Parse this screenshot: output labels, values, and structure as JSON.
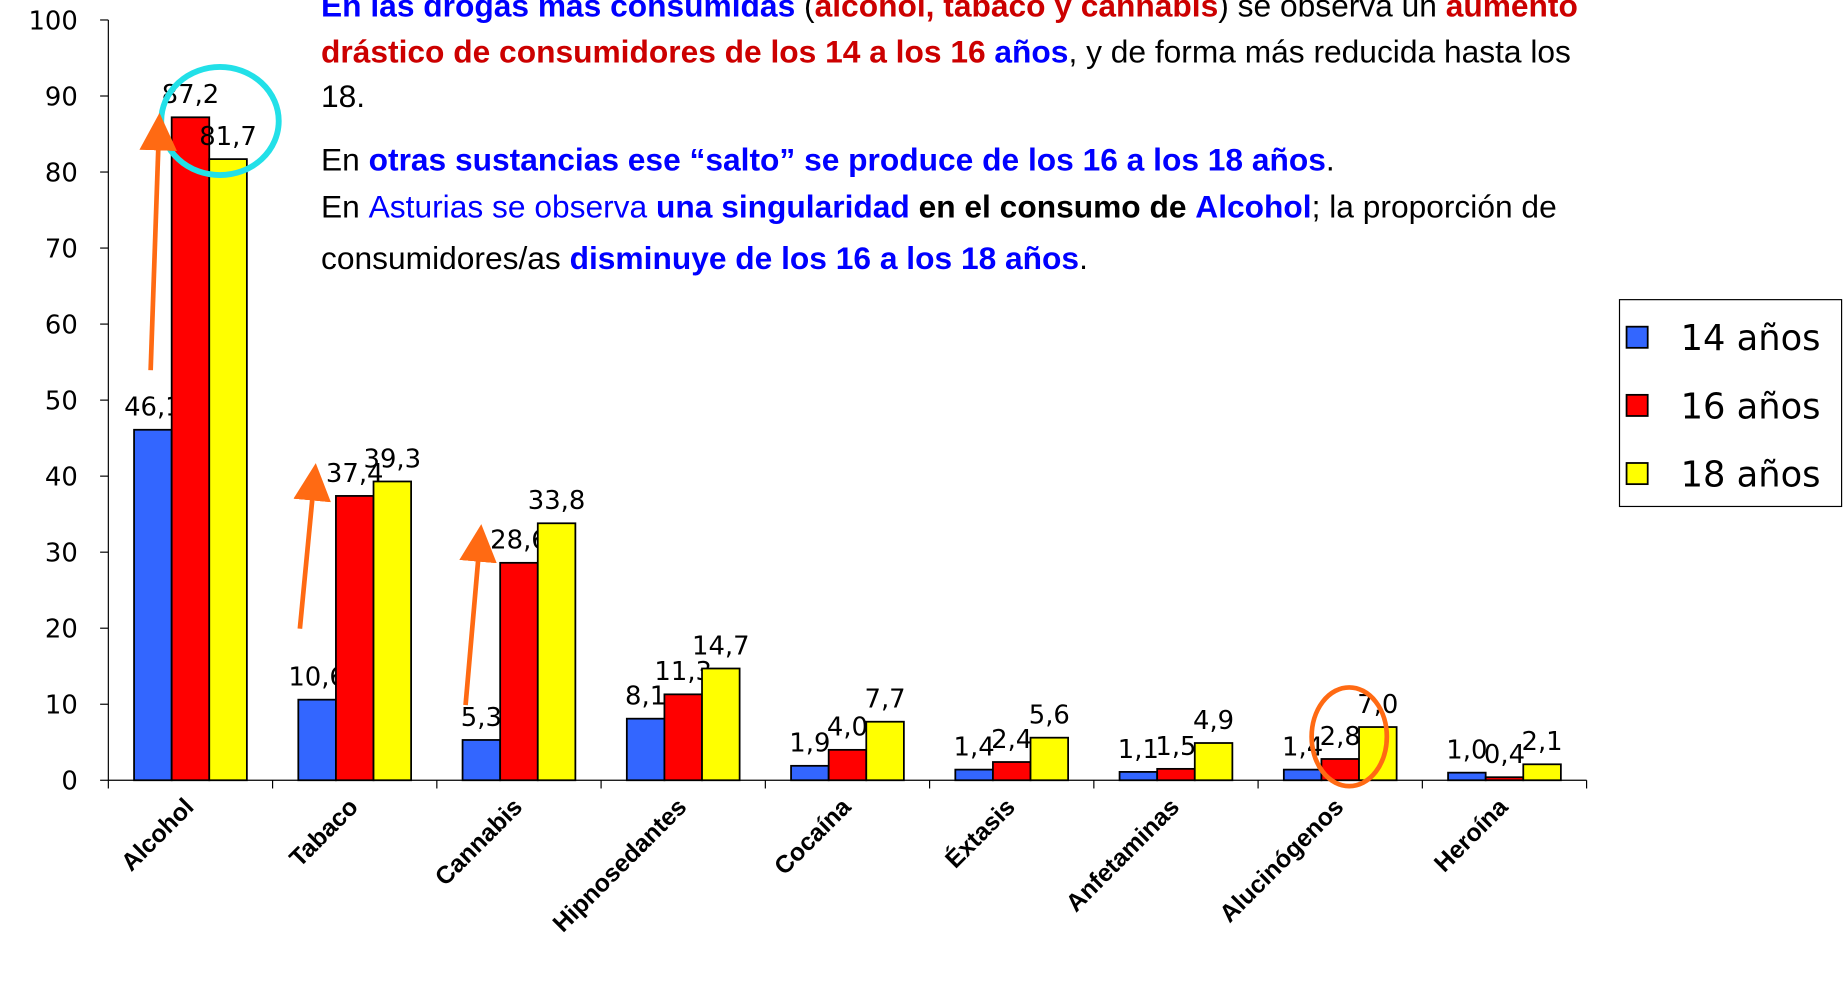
{
  "chart_data": {
    "type": "bar",
    "categories": [
      "Alcohol",
      "Tabaco",
      "Cannabis",
      "Hipnosedantes",
      "Cocaína",
      "Éxtasis",
      "Anfetaminas",
      "Alucinógenos",
      "Heroína"
    ],
    "series": [
      {
        "name": "14 años",
        "color": "#3366ff",
        "values": [
          46.1,
          10.6,
          5.3,
          8.1,
          1.9,
          1.4,
          1.1,
          1.4,
          1.0
        ],
        "value_labels": [
          "46,1",
          "10,6",
          "5,3",
          "8,1",
          "1,9",
          "1,4",
          "1,1",
          "1,4",
          "1,0"
        ]
      },
      {
        "name": "16 años",
        "color": "#ff0000",
        "values": [
          87.2,
          37.4,
          28.6,
          11.3,
          4.0,
          2.4,
          1.5,
          2.8,
          0.4
        ],
        "value_labels": [
          "87,2",
          "37,4",
          "28,6",
          "11,3",
          "4,0",
          "2,4",
          "1,5",
          "2,8",
          "0,4"
        ]
      },
      {
        "name": "18 años",
        "color": "#ffff00",
        "values": [
          81.7,
          39.3,
          33.8,
          14.7,
          7.7,
          5.6,
          4.9,
          7.0,
          2.1
        ],
        "value_labels": [
          "81,7",
          "39,3",
          "33,8",
          "14,7",
          "7,7",
          "5,6",
          "4,9",
          "7,0",
          "2,1"
        ]
      }
    ],
    "ylim": [
      0,
      100
    ],
    "yticks": [
      0,
      10,
      20,
      30,
      40,
      50,
      60,
      70,
      80,
      90,
      100
    ],
    "legend": "right",
    "annotation": [
      [
        {
          "text": "En las drogas más consumidas",
          "color": "#0000ff",
          "bold": true
        },
        {
          "text": " (",
          "color": "#000000",
          "bold": false
        },
        {
          "text": "alcohol, tabaco y cannabis",
          "color": "#cc0000",
          "bold": true
        },
        {
          "text": ") se observa un ",
          "color": "#000000",
          "bold": false
        },
        {
          "text": "aumento",
          "color": "#cc0000",
          "bold": true
        }
      ],
      [
        {
          "text": "drástico de consumidores de los 14 a los 16",
          "color": "#cc0000",
          "bold": true
        },
        {
          "text": " años",
          "color": "#0000ff",
          "bold": true
        },
        {
          "text": ", y de forma más reducida hasta los",
          "color": "#000000",
          "bold": false
        }
      ],
      [
        {
          "text": "18.",
          "color": "#000000",
          "bold": false
        }
      ],
      [
        {
          "text": "En ",
          "color": "#000000",
          "bold": false
        },
        {
          "text": "otras sustancias ese “salto” se produce de los 16 a los 18 años",
          "color": "#0000ff",
          "bold": true
        },
        {
          "text": ".",
          "color": "#000000",
          "bold": false
        }
      ],
      [
        {
          "text": "En ",
          "color": "#000000",
          "bold": false
        },
        {
          "text": "Asturias se observa ",
          "color": "#0000ff",
          "bold": false
        },
        {
          "text": "una singularidad",
          "color": "#0000ff",
          "bold": true
        },
        {
          "text": " en el consumo de ",
          "color": "#000000",
          "bold": true
        },
        {
          "text": "Alcohol",
          "color": "#0000ff",
          "bold": true
        },
        {
          "text": "; la proporción de",
          "color": "#000000",
          "bold": false
        }
      ],
      [
        {
          "text": "consumidores/as ",
          "color": "#000000",
          "bold": false
        },
        {
          "text": "disminuye de los 16 a los 18 años",
          "color": "#0000ff",
          "bold": true
        },
        {
          "text": ".",
          "color": "#000000",
          "bold": false
        }
      ]
    ]
  }
}
